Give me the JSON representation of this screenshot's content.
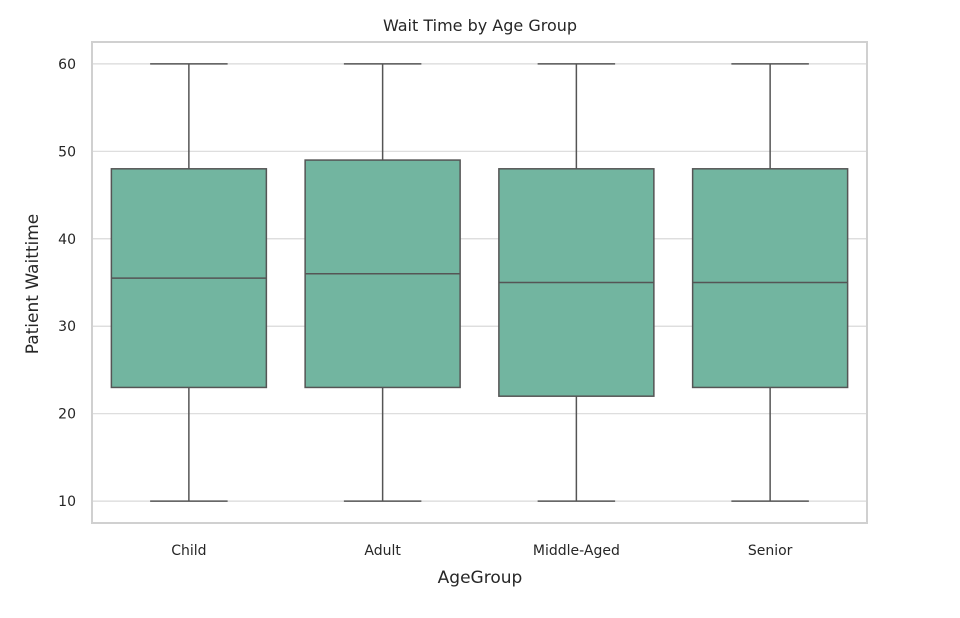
{
  "chart_data": {
    "type": "box",
    "title": "Wait Time by Age Group",
    "xlabel": "AgeGroup",
    "ylabel": "Patient Waittime",
    "categories": [
      "Child",
      "Adult",
      "Middle-Aged",
      "Senior"
    ],
    "boxes": [
      {
        "category": "Child",
        "min": 10,
        "q1": 23,
        "median": 35.5,
        "q3": 48,
        "max": 60
      },
      {
        "category": "Adult",
        "min": 10,
        "q1": 23,
        "median": 36,
        "q3": 49,
        "max": 60
      },
      {
        "category": "Middle-Aged",
        "min": 10,
        "q1": 22,
        "median": 35,
        "q3": 48,
        "max": 60
      },
      {
        "category": "Senior",
        "min": 10,
        "q1": 23,
        "median": 35,
        "q3": 48,
        "max": 60
      }
    ],
    "yticks": [
      10,
      20,
      30,
      40,
      50,
      60
    ],
    "ylim": [
      7.5,
      62.5
    ],
    "grid": true,
    "colors": {
      "box_fill": "#72b5a0",
      "line": "#555555",
      "grid": "#d9d9d9",
      "frame": "#d0d0d0"
    }
  }
}
